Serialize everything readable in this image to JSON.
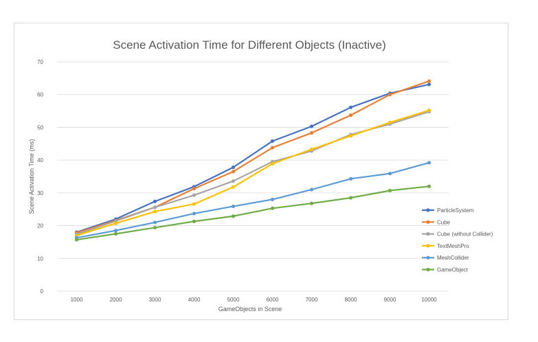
{
  "chart_data": {
    "type": "line",
    "title": "Scene Activation Time for Different Objects (Inactive)",
    "xlabel": "GameObjects in Scene",
    "ylabel": "Scene Activation Time (ms)",
    "categories": [
      "1000",
      "2000",
      "3000",
      "4000",
      "5000",
      "6000",
      "7000",
      "8000",
      "9000",
      "10000"
    ],
    "ylim": [
      0,
      70
    ],
    "yticks": [
      "0",
      "10",
      "20",
      "30",
      "40",
      "50",
      "60",
      "70"
    ],
    "grid": true,
    "legend_position": "right",
    "series": [
      {
        "name": "ParticleSystem",
        "color": "#4472c4",
        "values": [
          18,
          22,
          27.4,
          31.9,
          37.8,
          45.8,
          50.3,
          56.1,
          60.4,
          63.1
        ]
      },
      {
        "name": "Cube",
        "color": "#ed7d31",
        "values": [
          17.8,
          21.6,
          25.6,
          31.3,
          36.5,
          43.8,
          48.3,
          53.7,
          60,
          64.1
        ]
      },
      {
        "name": "Cube (without Collider)",
        "color": "#a5a5a5",
        "values": [
          17.4,
          21.4,
          25.6,
          29.3,
          33.6,
          39.5,
          42.8,
          47.8,
          51,
          54.8
        ]
      },
      {
        "name": "TextMeshPro",
        "color": "#ffc000",
        "values": [
          17,
          20.7,
          24.3,
          26.6,
          31.8,
          38.9,
          43.3,
          47.4,
          51.5,
          55.2
        ]
      },
      {
        "name": "MeshCollider",
        "color": "#5b9bd5",
        "values": [
          16.3,
          18.5,
          21,
          23.7,
          25.9,
          28,
          31,
          34.3,
          35.9,
          39.2
        ]
      },
      {
        "name": "GameObject",
        "color": "#70ad47",
        "values": [
          15.7,
          17.5,
          19.4,
          21.3,
          22.9,
          25.3,
          26.8,
          28.5,
          30.7,
          32
        ]
      }
    ]
  },
  "colors": {
    "grid": "#d9d9d9",
    "text": "#595959",
    "frame": "#d9d9d9"
  }
}
